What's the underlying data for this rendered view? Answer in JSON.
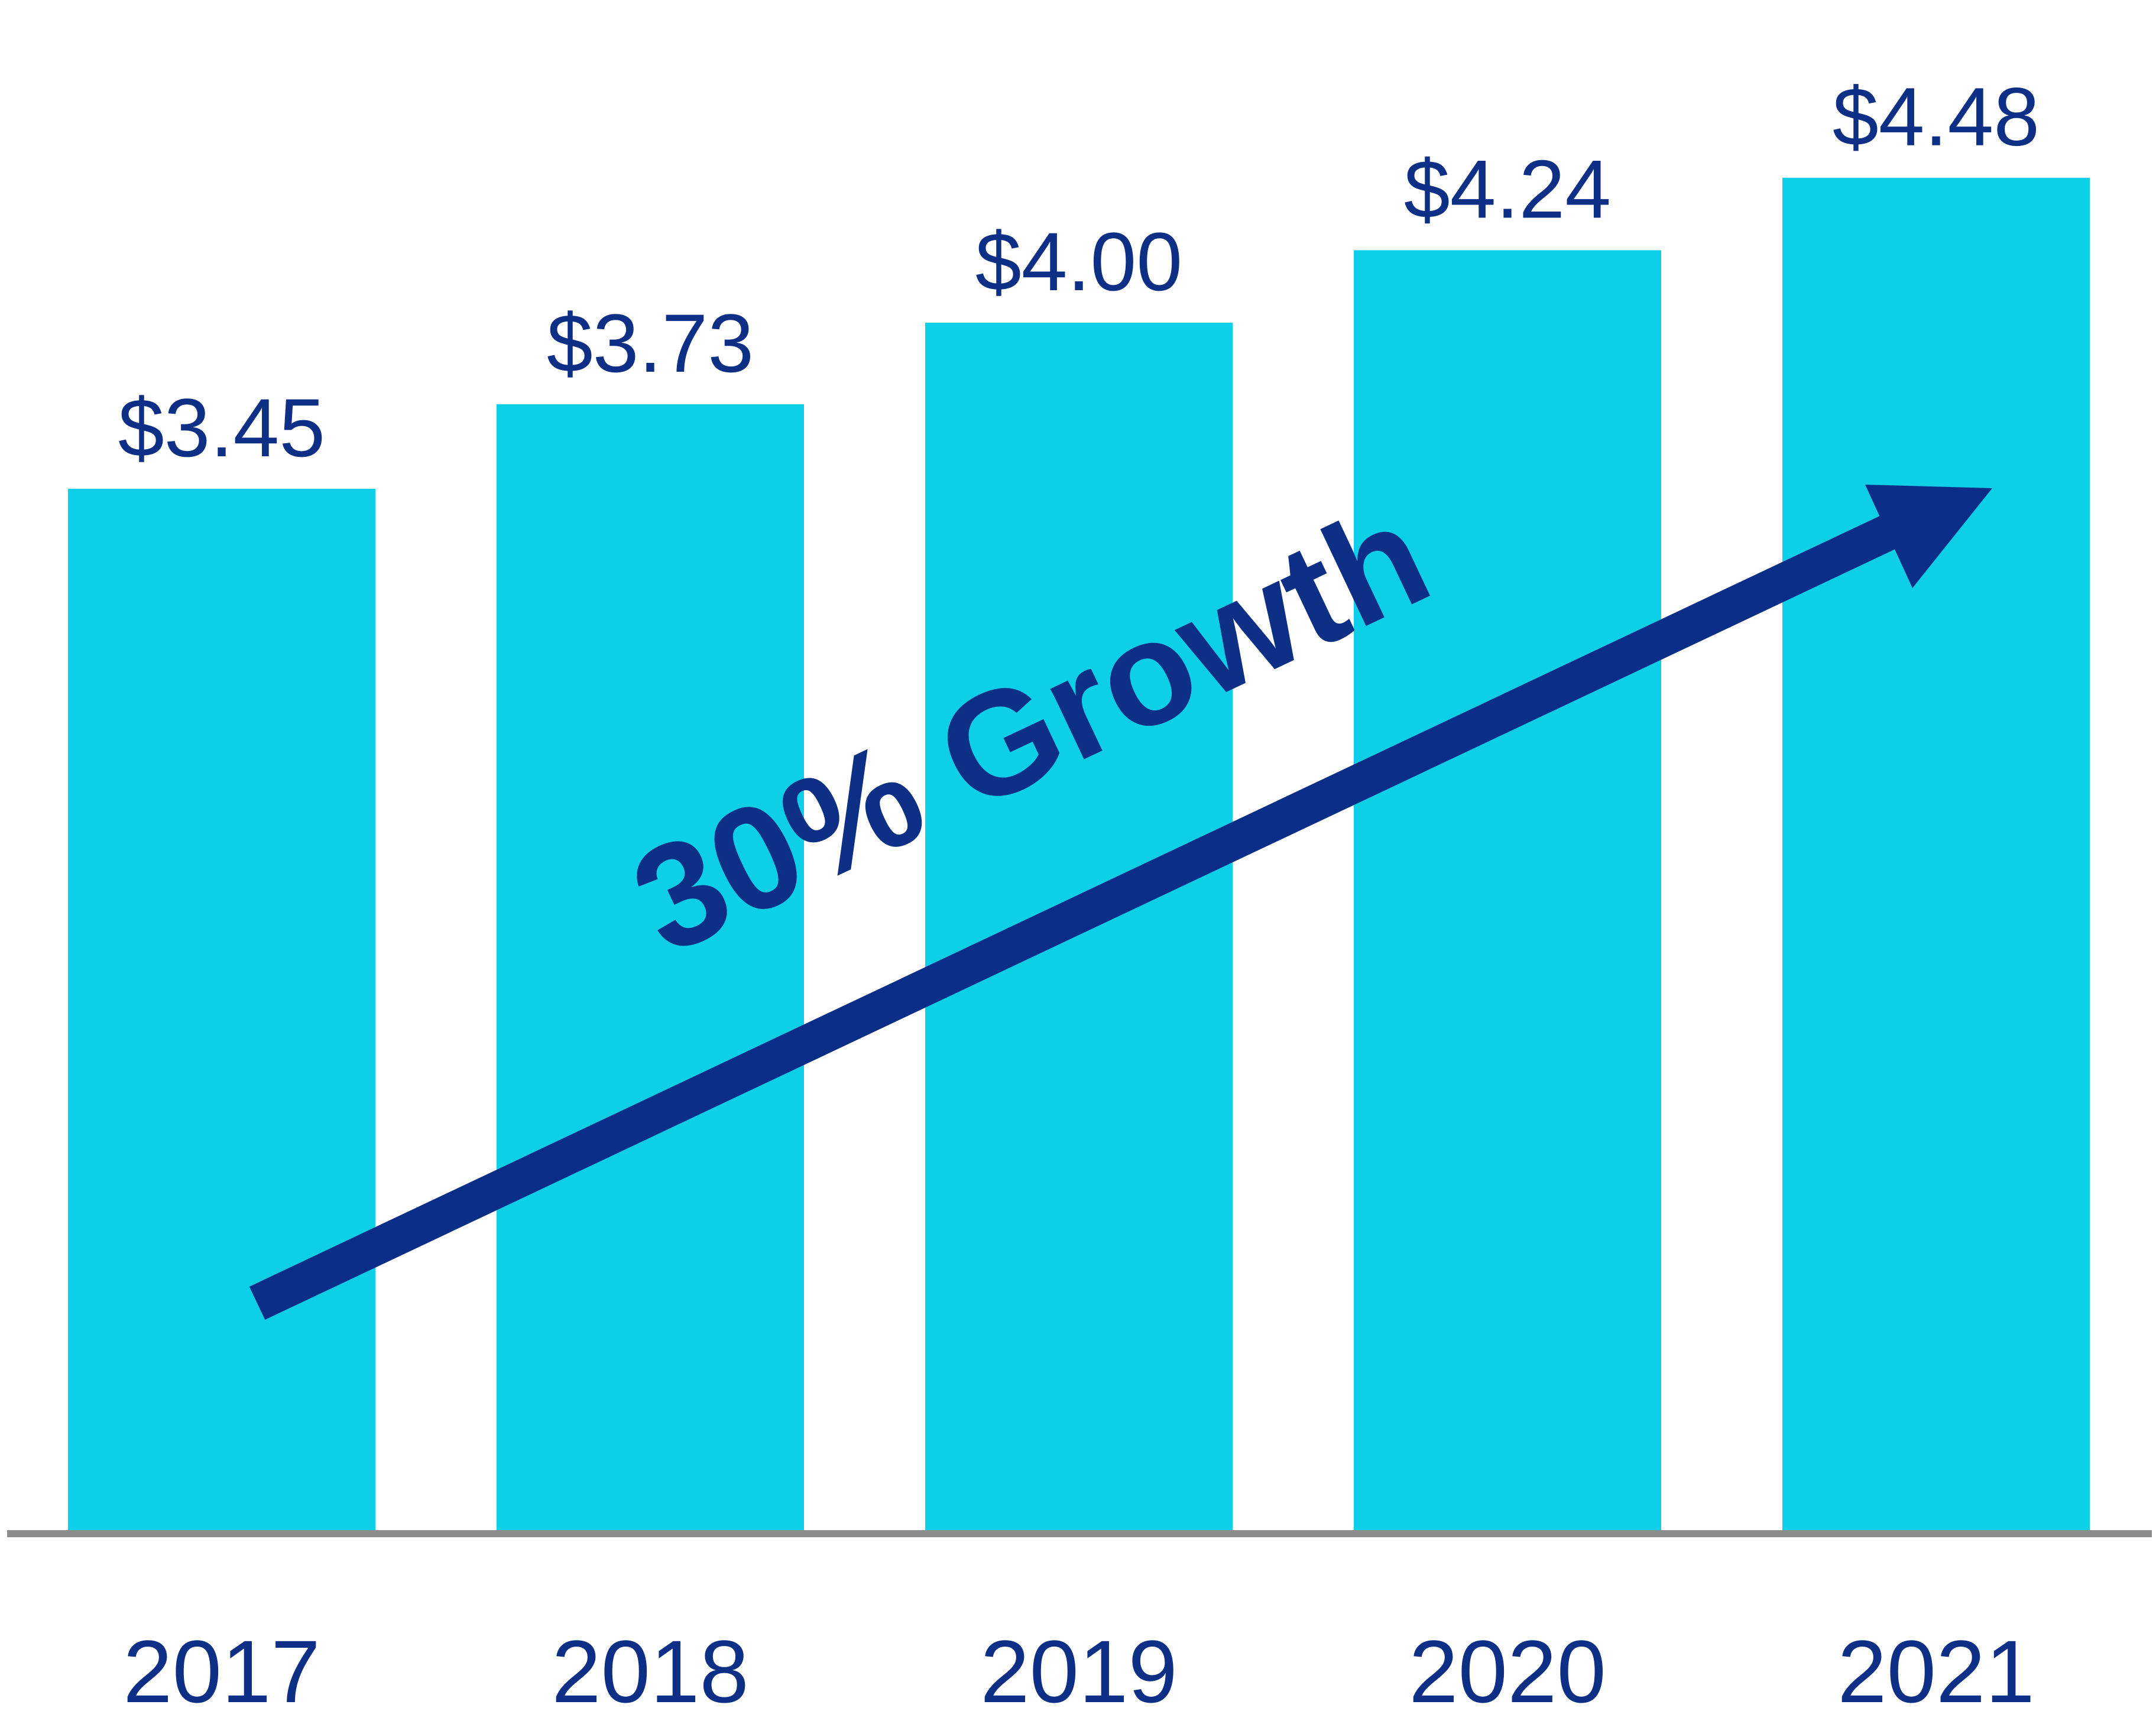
{
  "chart_data": {
    "type": "bar",
    "title": "",
    "xlabel": "",
    "ylabel": "",
    "categories": [
      "2017",
      "2018",
      "2019",
      "2020",
      "2021"
    ],
    "values": [
      3.45,
      3.73,
      4.0,
      4.24,
      4.48
    ],
    "value_labels": [
      "$3.45",
      "$3.73",
      "$4.00",
      "$4.24",
      "$4.48"
    ],
    "ylim": [
      0,
      5
    ],
    "grid": false,
    "legend": "none",
    "annotation": {
      "text": "30% Growth",
      "kind": "upward-arrow"
    }
  },
  "colors": {
    "bar": "#0dcfe8",
    "text": "#0e2f86",
    "arrow": "#0a2e87",
    "baseline": "#8c8c8c"
  }
}
